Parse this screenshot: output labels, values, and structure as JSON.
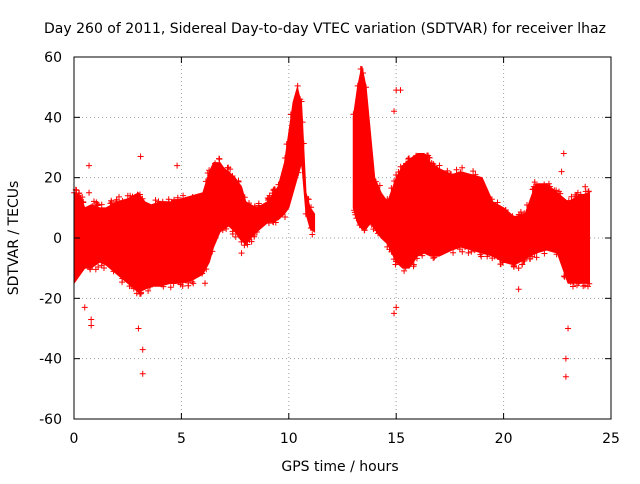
{
  "chart_data": {
    "type": "scatter",
    "title": "Day 260 of 2011, Sidereal Day-to-day VTEC variation (SDTVAR) for receiver lhaz",
    "xlabel": "GPS time / hours",
    "ylabel": "SDTVAR / TECUs",
    "xlim": [
      0,
      25
    ],
    "ylim": [
      -60,
      60
    ],
    "xticks": [
      0,
      5,
      10,
      15,
      20,
      25
    ],
    "yticks": [
      -60,
      -40,
      -20,
      0,
      20,
      40,
      60
    ],
    "grid": true,
    "marker": "+",
    "series": [
      {
        "name": "SDTVAR",
        "color": "#ff0000",
        "envelope": {
          "description": "dense band of points: upper/lower bound of the cloud over GPS time",
          "x": [
            0.0,
            0.3,
            0.5,
            0.8,
            1.2,
            1.5,
            2.0,
            2.5,
            3.0,
            3.3,
            3.6,
            4.0,
            4.5,
            5.0,
            5.5,
            6.0,
            6.3,
            6.5,
            6.8,
            7.0,
            7.2,
            7.5,
            7.8,
            8.0,
            8.5,
            9.0,
            9.5,
            9.8,
            10.0,
            10.2,
            10.4,
            10.6,
            10.8,
            11.0,
            11.2
          ],
          "upper": [
            15,
            14,
            10,
            11,
            10,
            10,
            12,
            13,
            15,
            12,
            11,
            12,
            12,
            13,
            14,
            15,
            22,
            25,
            25,
            23,
            22,
            20,
            17,
            12,
            10,
            12,
            17,
            25,
            35,
            45,
            50,
            44,
            15,
            10,
            8
          ],
          "lower": [
            -15,
            -12,
            -10,
            -10,
            -8,
            -9,
            -12,
            -15,
            -18,
            -17,
            -16,
            -16,
            -15,
            -15,
            -14,
            -12,
            -8,
            -3,
            2,
            3,
            4,
            2,
            -1,
            -2,
            2,
            5,
            6,
            8,
            10,
            15,
            20,
            25,
            8,
            3,
            2
          ]
        },
        "envelope2": {
          "x": [
            13.0,
            13.2,
            13.4,
            13.6,
            13.8,
            14.0,
            14.3,
            14.6,
            15.0,
            15.3,
            15.6,
            16.0,
            16.3,
            16.6,
            17.0,
            17.3,
            17.6,
            18.0,
            18.5,
            19.0,
            19.5,
            20.0,
            20.5,
            21.0,
            21.5,
            22.0,
            22.5,
            23.0,
            23.5,
            24.0
          ],
          "upper": [
            40,
            50,
            57,
            50,
            35,
            20,
            15,
            12,
            20,
            24,
            26,
            28,
            28,
            25,
            23,
            22,
            21,
            22,
            21,
            20,
            12,
            10,
            7,
            8,
            18,
            18,
            15,
            12,
            14,
            15
          ],
          "lower": [
            10,
            5,
            3,
            3,
            5,
            3,
            0,
            -2,
            -8,
            -10,
            -10,
            -6,
            -5,
            -6,
            -6,
            -5,
            -4,
            -3,
            -4,
            -5,
            -6,
            -8,
            -9,
            -7,
            -5,
            -4,
            -5,
            -15,
            -15,
            -15
          ]
        },
        "outliers": [
          {
            "x": 0.7,
            "y": 24
          },
          {
            "x": 0.7,
            "y": 15
          },
          {
            "x": 0.8,
            "y": -29
          },
          {
            "x": 0.8,
            "y": -27
          },
          {
            "x": 0.5,
            "y": -23
          },
          {
            "x": 3.1,
            "y": 27
          },
          {
            "x": 3.2,
            "y": -45
          },
          {
            "x": 3.2,
            "y": -37
          },
          {
            "x": 3.0,
            "y": -30
          },
          {
            "x": 4.8,
            "y": 24
          },
          {
            "x": 6.1,
            "y": -15
          },
          {
            "x": 7.8,
            "y": -5
          },
          {
            "x": 15.0,
            "y": 49
          },
          {
            "x": 15.2,
            "y": 49
          },
          {
            "x": 14.9,
            "y": 42
          },
          {
            "x": 14.9,
            "y": -25
          },
          {
            "x": 15.0,
            "y": -23
          },
          {
            "x": 17.4,
            "y": 21
          },
          {
            "x": 20.7,
            "y": -10
          },
          {
            "x": 20.7,
            "y": -17
          },
          {
            "x": 21.2,
            "y": -5
          },
          {
            "x": 22.8,
            "y": 28
          },
          {
            "x": 22.9,
            "y": -46
          },
          {
            "x": 22.9,
            "y": -40
          },
          {
            "x": 22.7,
            "y": 22
          },
          {
            "x": 23.0,
            "y": -30
          },
          {
            "x": 23.8,
            "y": 17
          }
        ]
      }
    ]
  }
}
